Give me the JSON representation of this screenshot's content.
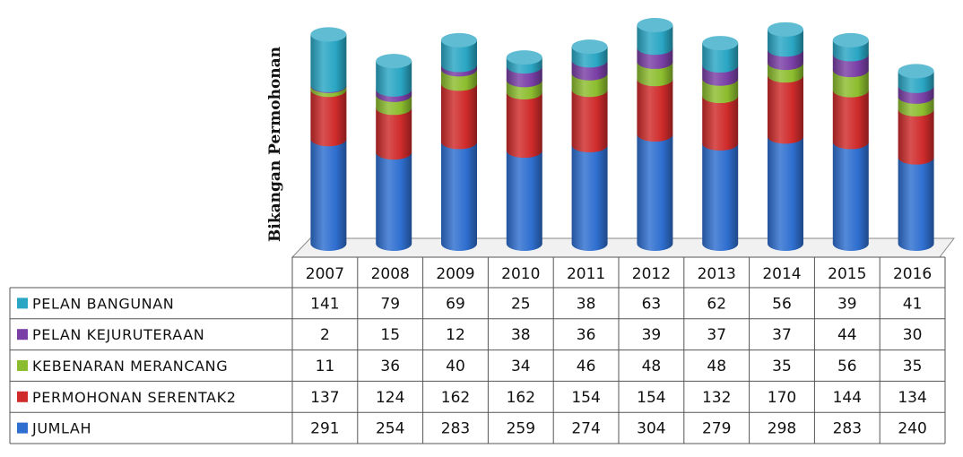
{
  "chart_data": {
    "type": "bar",
    "stacked": true,
    "style": "3d-cylinder",
    "title": "",
    "ylabel": "Bikangan  Permohonan",
    "categories": [
      "2007",
      "2008",
      "2009",
      "2010",
      "2011",
      "2012",
      "2013",
      "2014",
      "2015",
      "2016"
    ],
    "series": [
      {
        "name": "PELAN BANGUNAN",
        "color": "#2aa6c4",
        "values": [
          141,
          79,
          69,
          25,
          38,
          63,
          62,
          56,
          39,
          41
        ]
      },
      {
        "name": "PELAN KEJURUTERAAN",
        "color": "#7a3fa6",
        "values": [
          2,
          15,
          12,
          38,
          36,
          39,
          37,
          37,
          44,
          30
        ]
      },
      {
        "name": "KEBENARAN MERANCANG",
        "color": "#8cbd2e",
        "values": [
          11,
          36,
          40,
          34,
          46,
          48,
          48,
          35,
          56,
          35
        ]
      },
      {
        "name": "PERMOHONAN SERENTAK2",
        "color": "#cf2b2b",
        "values": [
          137,
          124,
          162,
          162,
          154,
          154,
          132,
          170,
          144,
          134
        ]
      },
      {
        "name": "JUMLAH",
        "color": "#2f6fd0",
        "values": [
          291,
          254,
          283,
          259,
          274,
          304,
          279,
          298,
          283,
          240
        ]
      }
    ],
    "legend": "data-table",
    "grid": false
  }
}
